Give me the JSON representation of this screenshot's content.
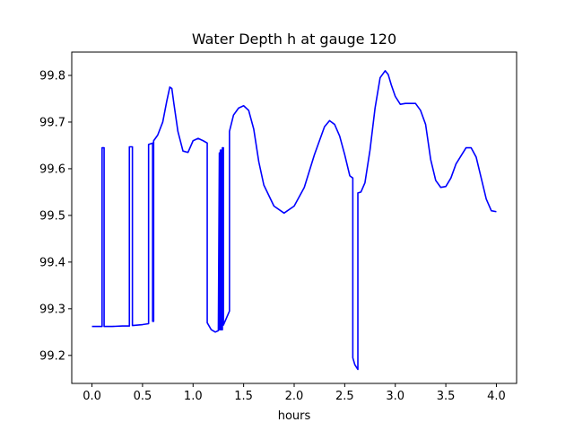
{
  "chart_data": {
    "type": "line",
    "title": "Water Depth h at gauge 120",
    "xlabel": "hours",
    "ylabel": "",
    "xlim": [
      -0.2,
      4.2
    ],
    "ylim": [
      99.14,
      99.85
    ],
    "xticks": [
      0.0,
      0.5,
      1.0,
      1.5,
      2.0,
      2.5,
      3.0,
      3.5,
      4.0
    ],
    "xtick_labels": [
      "0.0",
      "0.5",
      "1.0",
      "1.5",
      "2.0",
      "2.5",
      "3.0",
      "3.5",
      "4.0"
    ],
    "yticks": [
      99.2,
      99.3,
      99.4,
      99.5,
      99.6,
      99.7,
      99.8
    ],
    "ytick_labels": [
      "99.2",
      "99.3",
      "99.4",
      "99.5",
      "99.6",
      "99.7",
      "99.8"
    ],
    "grid": false,
    "series": [
      {
        "color": "#0000ff",
        "x": [
          0.0,
          0.1,
          0.1,
          0.12,
          0.12,
          0.2,
          0.3,
          0.37,
          0.37,
          0.4,
          0.4,
          0.5,
          0.56,
          0.56,
          0.6,
          0.6,
          0.61,
          0.61,
          0.65,
          0.7,
          0.74,
          0.77,
          0.79,
          0.81,
          0.85,
          0.9,
          0.95,
          1.0,
          1.05,
          1.1,
          1.14,
          1.14,
          1.18,
          1.22,
          1.25,
          1.26,
          1.26,
          1.27,
          1.27,
          1.28,
          1.28,
          1.29,
          1.29,
          1.3,
          1.3,
          1.31,
          1.36,
          1.36,
          1.4,
          1.45,
          1.5,
          1.55,
          1.6,
          1.65,
          1.7,
          1.8,
          1.9,
          2.0,
          2.1,
          2.2,
          2.3,
          2.35,
          2.4,
          2.45,
          2.5,
          2.55,
          2.58,
          2.58,
          2.6,
          2.63,
          2.63,
          2.66,
          2.7,
          2.75,
          2.8,
          2.85,
          2.9,
          2.93,
          2.96,
          3.0,
          3.05,
          3.1,
          3.2,
          3.25,
          3.3,
          3.35,
          3.4,
          3.45,
          3.5,
          3.55,
          3.6,
          3.7,
          3.75,
          3.8,
          3.85,
          3.9,
          3.95,
          4.0
        ],
        "y": [
          99.262,
          99.262,
          99.645,
          99.645,
          99.262,
          99.262,
          99.263,
          99.263,
          99.647,
          99.647,
          99.264,
          99.266,
          99.268,
          99.652,
          99.655,
          99.273,
          99.273,
          99.66,
          99.672,
          99.7,
          99.745,
          99.775,
          99.772,
          99.74,
          99.68,
          99.638,
          99.635,
          99.66,
          99.665,
          99.66,
          99.655,
          99.27,
          99.255,
          99.25,
          99.253,
          99.634,
          99.255,
          99.255,
          99.64,
          99.64,
          99.255,
          99.255,
          99.645,
          99.645,
          99.265,
          99.27,
          99.295,
          99.68,
          99.715,
          99.73,
          99.735,
          99.725,
          99.685,
          99.615,
          99.565,
          99.52,
          99.505,
          99.52,
          99.56,
          99.63,
          99.69,
          99.703,
          99.695,
          99.67,
          99.63,
          99.585,
          99.58,
          99.195,
          99.18,
          99.17,
          99.548,
          99.55,
          99.57,
          99.64,
          99.73,
          99.795,
          99.81,
          99.802,
          99.78,
          99.755,
          99.738,
          99.74,
          99.74,
          99.725,
          99.695,
          99.62,
          99.575,
          99.56,
          99.562,
          99.58,
          99.61,
          99.645,
          99.645,
          99.625,
          99.58,
          99.535,
          99.51,
          99.508
        ]
      }
    ]
  }
}
